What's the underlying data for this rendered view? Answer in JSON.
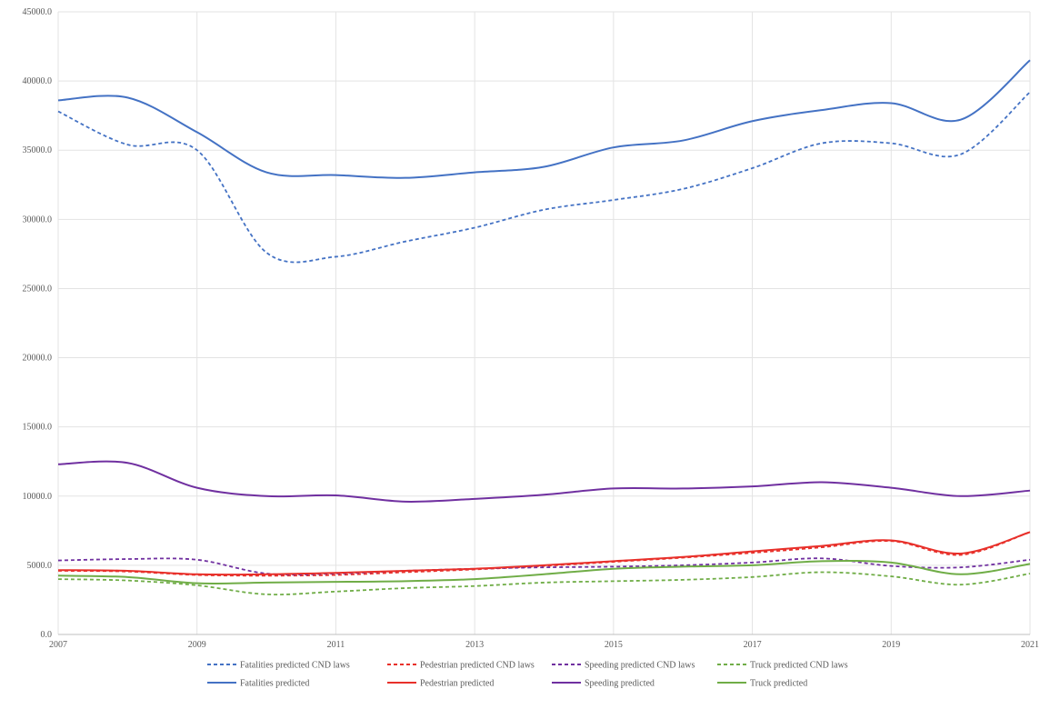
{
  "chart_data": {
    "type": "line",
    "x": [
      2007,
      2008,
      2009,
      2010,
      2011,
      2012,
      2013,
      2014,
      2015,
      2016,
      2017,
      2018,
      2019,
      2020,
      2021
    ],
    "x_tick_labels": [
      "2007",
      "2009",
      "2011",
      "2013",
      "2015",
      "2017",
      "2019",
      "2021"
    ],
    "y_tick_labels": [
      "0.0",
      "5000.0",
      "10000.0",
      "15000.0",
      "20000.0",
      "25000.0",
      "30000.0",
      "35000.0",
      "40000.0",
      "45000.0"
    ],
    "ylim": [
      0,
      45000
    ],
    "grid": true,
    "legend_position": "bottom",
    "series": [
      {
        "name": "Fatalities predicted CND laws",
        "color": "#4472C4",
        "dash": true,
        "values": [
          37800,
          35400,
          35000,
          27600,
          27300,
          28400,
          29400,
          30700,
          31400,
          32200,
          33700,
          35500,
          35500,
          34700,
          39200
        ]
      },
      {
        "name": "Pedestrian predicted CND laws",
        "color": "#E8302A",
        "dash": true,
        "values": [
          4600,
          4550,
          4300,
          4250,
          4300,
          4500,
          4700,
          4950,
          5250,
          5550,
          5900,
          6300,
          6750,
          5750,
          7400
        ]
      },
      {
        "name": "Speeding predicted CND laws",
        "color": "#7030A0",
        "dash": true,
        "values": [
          5350,
          5450,
          5400,
          4400,
          4400,
          4600,
          4750,
          4850,
          4900,
          5000,
          5200,
          5500,
          4950,
          4850,
          5400
        ]
      },
      {
        "name": "Truck predicted CND laws",
        "color": "#70AD47",
        "dash": true,
        "values": [
          4000,
          3900,
          3550,
          2900,
          3100,
          3350,
          3500,
          3750,
          3850,
          3950,
          4150,
          4500,
          4200,
          3600,
          4400
        ]
      },
      {
        "name": "Fatalities predicted",
        "color": "#4472C4",
        "dash": false,
        "values": [
          38600,
          38800,
          36300,
          33400,
          33200,
          33000,
          33400,
          33800,
          35200,
          35700,
          37100,
          37900,
          38400,
          37200,
          41500
        ]
      },
      {
        "name": "Pedestrian predicted",
        "color": "#E8302A",
        "dash": false,
        "values": [
          4650,
          4600,
          4350,
          4350,
          4450,
          4600,
          4750,
          5000,
          5300,
          5600,
          6000,
          6400,
          6800,
          5850,
          7400
        ]
      },
      {
        "name": "Speeding predicted",
        "color": "#7030A0",
        "dash": false,
        "values": [
          12300,
          12400,
          10600,
          10000,
          10050,
          9600,
          9800,
          10100,
          10550,
          10550,
          10700,
          11000,
          10600,
          10000,
          10400
        ]
      },
      {
        "name": "Truck predicted",
        "color": "#70AD47",
        "dash": false,
        "values": [
          4250,
          4150,
          3700,
          3750,
          3800,
          3850,
          4000,
          4350,
          4750,
          4900,
          5000,
          5300,
          5200,
          4350,
          5100
        ]
      }
    ]
  }
}
